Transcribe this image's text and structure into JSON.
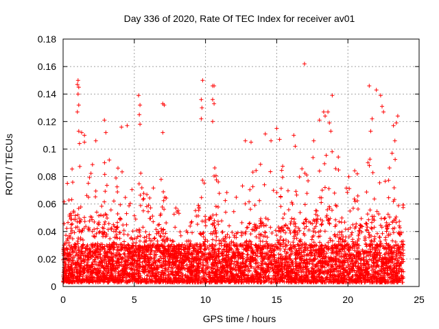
{
  "chart_data": {
    "type": "scatter",
    "title": "Day 336 of 2020, Rate Of TEC Index for receiver av01",
    "xlabel": "GPS time / hours",
    "ylabel": "ROTI / TECUs",
    "xlim": [
      0,
      25
    ],
    "ylim": [
      0,
      0.18
    ],
    "x_ticks": [
      0,
      5,
      10,
      15,
      20,
      25
    ],
    "x_tick_labels": [
      "0",
      "5",
      "10",
      "15",
      "20",
      "25"
    ],
    "y_ticks": [
      0,
      0.02,
      0.04,
      0.06,
      0.08,
      0.1,
      0.12,
      0.14,
      0.16,
      0.18
    ],
    "y_tick_labels": [
      "0",
      "0.02",
      "0.04",
      "0.06",
      "0.08",
      "0.1",
      "0.12",
      "0.14",
      "0.16",
      "0.18"
    ],
    "grid": true,
    "marker": "plus",
    "color": "#ff0000",
    "x_data_extent": [
      0,
      23.9
    ],
    "outliers": [
      {
        "x": 1.05,
        "y": 0.15
      },
      {
        "x": 1.0,
        "y": 0.147
      },
      {
        "x": 1.1,
        "y": 0.145
      },
      {
        "x": 1.05,
        "y": 0.14
      },
      {
        "x": 1.1,
        "y": 0.132
      },
      {
        "x": 1.0,
        "y": 0.127
      },
      {
        "x": 1.1,
        "y": 0.113
      },
      {
        "x": 1.3,
        "y": 0.112
      },
      {
        "x": 1.5,
        "y": 0.11
      },
      {
        "x": 2.3,
        "y": 0.106
      },
      {
        "x": 2.9,
        "y": 0.121
      },
      {
        "x": 3.0,
        "y": 0.112
      },
      {
        "x": 4.1,
        "y": 0.116
      },
      {
        "x": 4.5,
        "y": 0.117
      },
      {
        "x": 5.3,
        "y": 0.139
      },
      {
        "x": 5.4,
        "y": 0.132
      },
      {
        "x": 5.35,
        "y": 0.125
      },
      {
        "x": 5.4,
        "y": 0.118
      },
      {
        "x": 7.0,
        "y": 0.133
      },
      {
        "x": 7.1,
        "y": 0.132
      },
      {
        "x": 7.0,
        "y": 0.112
      },
      {
        "x": 9.8,
        "y": 0.15
      },
      {
        "x": 9.7,
        "y": 0.136
      },
      {
        "x": 9.75,
        "y": 0.13
      },
      {
        "x": 9.7,
        "y": 0.122
      },
      {
        "x": 10.5,
        "y": 0.146
      },
      {
        "x": 10.6,
        "y": 0.146
      },
      {
        "x": 10.5,
        "y": 0.136
      },
      {
        "x": 10.6,
        "y": 0.133
      },
      {
        "x": 10.5,
        "y": 0.12
      },
      {
        "x": 12.8,
        "y": 0.106
      },
      {
        "x": 13.2,
        "y": 0.105
      },
      {
        "x": 14.2,
        "y": 0.111
      },
      {
        "x": 14.6,
        "y": 0.106
      },
      {
        "x": 15.0,
        "y": 0.115
      },
      {
        "x": 15.2,
        "y": 0.107
      },
      {
        "x": 16.2,
        "y": 0.11
      },
      {
        "x": 16.3,
        "y": 0.102
      },
      {
        "x": 16.95,
        "y": 0.162
      },
      {
        "x": 17.6,
        "y": 0.106
      },
      {
        "x": 18.0,
        "y": 0.121
      },
      {
        "x": 18.3,
        "y": 0.127
      },
      {
        "x": 18.4,
        "y": 0.124
      },
      {
        "x": 18.6,
        "y": 0.127
      },
      {
        "x": 18.7,
        "y": 0.119
      },
      {
        "x": 18.9,
        "y": 0.139
      },
      {
        "x": 18.8,
        "y": 0.113
      },
      {
        "x": 21.5,
        "y": 0.146
      },
      {
        "x": 21.7,
        "y": 0.122
      },
      {
        "x": 21.6,
        "y": 0.113
      },
      {
        "x": 22.0,
        "y": 0.143
      },
      {
        "x": 22.3,
        "y": 0.139
      },
      {
        "x": 22.4,
        "y": 0.131
      },
      {
        "x": 22.5,
        "y": 0.127
      },
      {
        "x": 23.2,
        "y": 0.117
      },
      {
        "x": 23.5,
        "y": 0.124
      },
      {
        "x": 23.4,
        "y": 0.119
      },
      {
        "x": 23.3,
        "y": 0.106
      },
      {
        "x": 23.1,
        "y": 0.097
      }
    ],
    "activity_profile": [
      {
        "x": 0.0,
        "y": 0.045
      },
      {
        "x": 0.5,
        "y": 0.08
      },
      {
        "x": 1.0,
        "y": 0.095
      },
      {
        "x": 1.5,
        "y": 0.085
      },
      {
        "x": 2.0,
        "y": 0.07
      },
      {
        "x": 2.5,
        "y": 0.085
      },
      {
        "x": 3.0,
        "y": 0.08
      },
      {
        "x": 3.5,
        "y": 0.065
      },
      {
        "x": 4.0,
        "y": 0.075
      },
      {
        "x": 4.5,
        "y": 0.06
      },
      {
        "x": 5.0,
        "y": 0.055
      },
      {
        "x": 5.5,
        "y": 0.065
      },
      {
        "x": 6.0,
        "y": 0.05
      },
      {
        "x": 6.5,
        "y": 0.055
      },
      {
        "x": 7.0,
        "y": 0.06
      },
      {
        "x": 7.5,
        "y": 0.045
      },
      {
        "x": 8.0,
        "y": 0.04
      },
      {
        "x": 8.5,
        "y": 0.035
      },
      {
        "x": 9.0,
        "y": 0.03
      },
      {
        "x": 9.5,
        "y": 0.05
      },
      {
        "x": 10.0,
        "y": 0.07
      },
      {
        "x": 10.5,
        "y": 0.08
      },
      {
        "x": 11.0,
        "y": 0.06
      },
      {
        "x": 11.5,
        "y": 0.05
      },
      {
        "x": 12.0,
        "y": 0.055
      },
      {
        "x": 12.5,
        "y": 0.06
      },
      {
        "x": 13.0,
        "y": 0.065
      },
      {
        "x": 13.5,
        "y": 0.07
      },
      {
        "x": 14.0,
        "y": 0.075
      },
      {
        "x": 14.5,
        "y": 0.07
      },
      {
        "x": 15.0,
        "y": 0.06
      },
      {
        "x": 15.5,
        "y": 0.07
      },
      {
        "x": 16.0,
        "y": 0.075
      },
      {
        "x": 16.5,
        "y": 0.065
      },
      {
        "x": 17.0,
        "y": 0.07
      },
      {
        "x": 17.5,
        "y": 0.08
      },
      {
        "x": 18.0,
        "y": 0.085
      },
      {
        "x": 18.5,
        "y": 0.09
      },
      {
        "x": 19.0,
        "y": 0.085
      },
      {
        "x": 19.5,
        "y": 0.07
      },
      {
        "x": 20.0,
        "y": 0.065
      },
      {
        "x": 20.5,
        "y": 0.065
      },
      {
        "x": 21.0,
        "y": 0.075
      },
      {
        "x": 21.5,
        "y": 0.085
      },
      {
        "x": 22.0,
        "y": 0.085
      },
      {
        "x": 22.5,
        "y": 0.075
      },
      {
        "x": 23.0,
        "y": 0.065
      },
      {
        "x": 23.5,
        "y": 0.08
      },
      {
        "x": 23.9,
        "y": 0.045
      }
    ]
  }
}
